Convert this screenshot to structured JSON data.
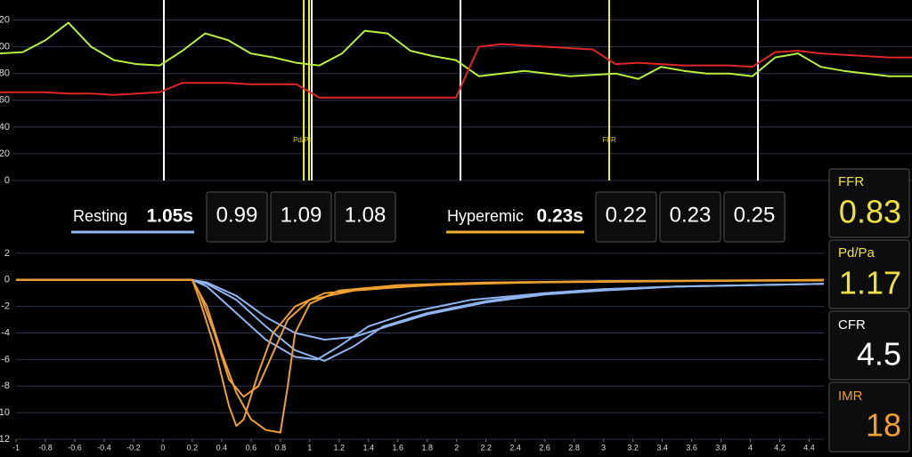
{
  "pressure_chart": {
    "type": "line",
    "ylim": [
      0,
      135
    ],
    "yticks": [
      0,
      20,
      40,
      60,
      80,
      100,
      120
    ],
    "grid": true,
    "series": [
      {
        "color": "#b8f040",
        "values": [
          95,
          96,
          105,
          118,
          100,
          90,
          87,
          86,
          97,
          110,
          105,
          95,
          92,
          88,
          86,
          95,
          112,
          110,
          97,
          93,
          90,
          78,
          80,
          82,
          80,
          78,
          79,
          80,
          76,
          85,
          82,
          80,
          80,
          78,
          92,
          95,
          85,
          82,
          80,
          78,
          78
        ]
      },
      {
        "color": "#e02626",
        "values": [
          66,
          66,
          66,
          65,
          65,
          64,
          65,
          66,
          73,
          73,
          73,
          72,
          72,
          72,
          62,
          62,
          62,
          62,
          62,
          62,
          62,
          100,
          102,
          101,
          100,
          99,
          98,
          87,
          88,
          87,
          86,
          86,
          86,
          85,
          96,
          97,
          95,
          94,
          93,
          92,
          92
        ]
      }
    ],
    "markers": [
      "Pd/Pa",
      "FFR"
    ]
  },
  "transit": {
    "resting": {
      "label": "Resting",
      "mean": "1.05s",
      "values": [
        "0.99",
        "1.09",
        "1.08"
      ]
    },
    "hyperemic": {
      "label": "Hyperemic",
      "mean": "0.23s",
      "values": [
        "0.22",
        "0.23",
        "0.25"
      ]
    }
  },
  "thermo_chart": {
    "type": "line",
    "xlim": [
      -1,
      4.5
    ],
    "ylim": [
      -12,
      3
    ],
    "xticks": [
      -1,
      -0.8,
      -0.6,
      -0.4,
      -0.2,
      0,
      0.2,
      0.4,
      0.6,
      0.8,
      1,
      1.2,
      1.4,
      1.6,
      1.8,
      2,
      2.2,
      2.4,
      2.6,
      2.8,
      3,
      3.2,
      3.4,
      3.6,
      3.8,
      4,
      4.2,
      4.4
    ],
    "yticks": [
      2,
      0,
      -2,
      -4,
      -6,
      -8,
      -10,
      -12
    ],
    "grid": true,
    "series": [
      {
        "color": "#8fb4f0",
        "x": [
          -1,
          0.2,
          0.3,
          0.5,
          0.7,
          0.9,
          1.1,
          1.3,
          1.5,
          1.8,
          2.2,
          2.6,
          3,
          3.5,
          4,
          4.5
        ],
        "y": [
          0,
          0,
          -0.3,
          -1.5,
          -3.5,
          -5.3,
          -6.1,
          -5,
          -3.5,
          -2.5,
          -1.6,
          -1,
          -0.7,
          -0.5,
          -0.4,
          -0.3
        ]
      },
      {
        "color": "#8fb4f0",
        "x": [
          -1,
          0.2,
          0.3,
          0.5,
          0.7,
          0.9,
          1.1,
          1.3,
          1.5,
          1.8,
          2.2,
          2.6,
          3,
          3.5,
          4,
          4.5
        ],
        "y": [
          0,
          0,
          -0.2,
          -1.2,
          -2.8,
          -4,
          -4.5,
          -4.3,
          -3.6,
          -2.6,
          -1.7,
          -1.1,
          -0.8,
          -0.5,
          -0.4,
          -0.3
        ]
      },
      {
        "color": "#8fb4f0",
        "x": [
          -1,
          0.2,
          0.3,
          0.5,
          0.7,
          0.9,
          1.05,
          1.2,
          1.4,
          1.7,
          2.1,
          2.6,
          3,
          3.5,
          4,
          4.5
        ],
        "y": [
          0,
          0,
          -0.5,
          -2.5,
          -4.5,
          -5.8,
          -6,
          -5,
          -3.5,
          -2.4,
          -1.5,
          -1,
          -0.7,
          -0.5,
          -0.4,
          -0.3
        ]
      },
      {
        "color": "#f0a030",
        "x": [
          -1,
          0.2,
          0.3,
          0.4,
          0.5,
          0.6,
          0.7,
          0.8,
          0.85,
          0.9,
          1,
          1.2,
          1.6,
          2.2,
          3,
          4.5
        ],
        "y": [
          0,
          0,
          -2,
          -5.5,
          -8.5,
          -10.5,
          -11.3,
          -11.5,
          -8,
          -4,
          -1.8,
          -0.8,
          -0.4,
          -0.2,
          -0.1,
          -0.05
        ]
      },
      {
        "color": "#f0a030",
        "x": [
          -1,
          0.2,
          0.25,
          0.35,
          0.45,
          0.5,
          0.55,
          0.65,
          0.75,
          0.9,
          1.1,
          1.5,
          2,
          3,
          4.5
        ],
        "y": [
          0,
          0,
          -1.5,
          -5,
          -9.5,
          -11,
          -10.5,
          -7,
          -4,
          -2,
          -1,
          -0.6,
          -0.3,
          -0.1,
          0
        ]
      },
      {
        "color": "#f0a030",
        "x": [
          -1,
          0.2,
          0.25,
          0.35,
          0.45,
          0.55,
          0.65,
          0.75,
          0.85,
          1,
          1.3,
          1.8,
          2.5,
          4.5
        ],
        "y": [
          0,
          0,
          -1,
          -4,
          -7.5,
          -8.8,
          -8,
          -5.5,
          -3,
          -1.5,
          -0.8,
          -0.4,
          -0.2,
          0
        ]
      }
    ]
  },
  "indices": [
    {
      "label": "FFR",
      "value": "0.83"
    },
    {
      "label": "Pd/Pa",
      "value": "1.17"
    },
    {
      "label": "CFR",
      "value": "4.5"
    },
    {
      "label": "IMR",
      "value": "18"
    }
  ]
}
